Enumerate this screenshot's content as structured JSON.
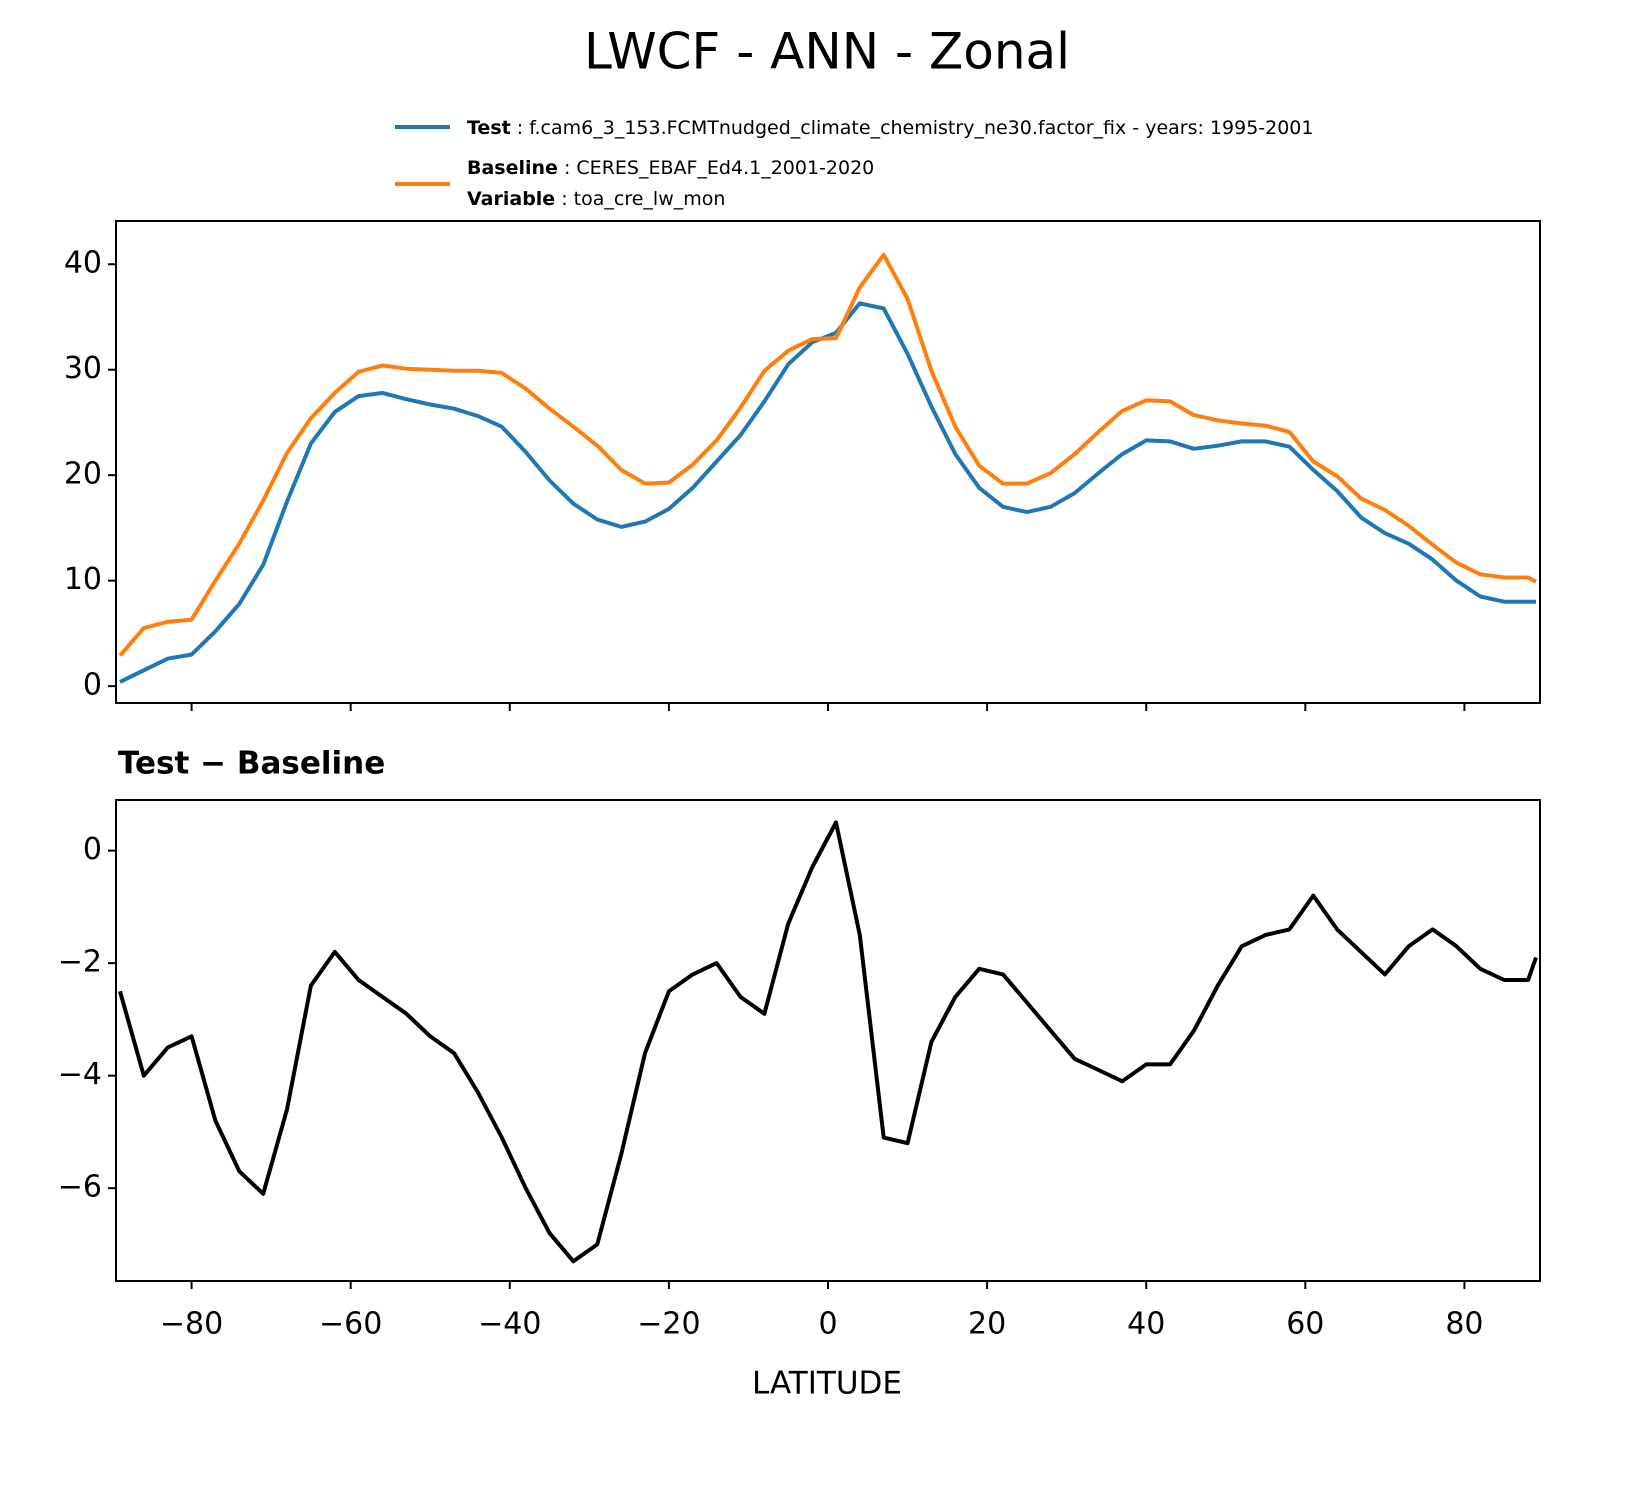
{
  "chart_data": [
    {
      "type": "line",
      "title": "LWCF - ANN - Zonal",
      "x": [
        -89,
        -86,
        -83,
        -80,
        -77,
        -74,
        -71,
        -68,
        -65,
        -62,
        -59,
        -56,
        -53,
        -50,
        -47,
        -44,
        -41,
        -38,
        -35,
        -32,
        -29,
        -26,
        -23,
        -20,
        -17,
        -14,
        -11,
        -8,
        -5,
        -2,
        1,
        4,
        7,
        10,
        13,
        16,
        19,
        22,
        25,
        28,
        31,
        34,
        37,
        40,
        43,
        46,
        49,
        52,
        55,
        58,
        61,
        64,
        67,
        70,
        73,
        76,
        79,
        82,
        85,
        88,
        89
      ],
      "series": [
        {
          "name": "Test",
          "label": " : f.cam6_3_153.FCMTnudged_climate_chemistry_ne30.factor_fix - years: 1995-2001",
          "color": "#1f77b4",
          "values": [
            0.4,
            1.5,
            2.6,
            3.0,
            5.2,
            7.8,
            11.5,
            17.5,
            23,
            26,
            27.5,
            27.8,
            27.2,
            26.7,
            26.3,
            25.6,
            24.6,
            22.2,
            19.5,
            17.3,
            15.8,
            15.1,
            15.6,
            16.8,
            18.8,
            21.3,
            23.8,
            27.0,
            30.5,
            32.6,
            33.5,
            36.3,
            35.8,
            31.5,
            26.5,
            22.0,
            18.8,
            17.0,
            16.5,
            17.0,
            18.3,
            20.2,
            22.0,
            23.3,
            23.2,
            22.5,
            22.8,
            23.2,
            23.2,
            22.7,
            20.5,
            18.5,
            16.0,
            14.5,
            13.5,
            12.0,
            10.0,
            8.5,
            8.0,
            8.0,
            8.0
          ]
        },
        {
          "name": "Baseline",
          "label": " : CERES_EBAF_Ed4.1_2001-2020",
          "color": "#ff7f0e",
          "values": [
            2.9,
            5.5,
            6.1,
            6.3,
            10.0,
            13.5,
            17.6,
            22.1,
            25.4,
            27.8,
            29.8,
            30.4,
            30.1,
            30.0,
            29.9,
            29.9,
            29.7,
            28.2,
            26.3,
            24.6,
            22.8,
            20.5,
            19.2,
            19.3,
            21.0,
            23.3,
            26.4,
            29.9,
            31.8,
            32.9,
            33.0,
            37.8,
            40.9,
            36.7,
            29.9,
            24.6,
            20.9,
            19.2,
            19.2,
            20.2,
            22.0,
            24.1,
            26.1,
            27.1,
            27.0,
            25.7,
            25.2,
            24.9,
            24.7,
            24.1,
            21.3,
            19.9,
            17.8,
            16.7,
            15.2,
            13.4,
            11.7,
            10.6,
            10.3,
            10.3,
            9.9
          ]
        }
      ],
      "variable": {
        "name": "Variable",
        "label": " : toa_cre_lw_mon"
      },
      "xlim": [
        -89.5,
        89.5
      ],
      "xticks": [
        -80,
        -60,
        -40,
        -20,
        0,
        20,
        40,
        60,
        80
      ],
      "ylim": [
        -1.6,
        44.1
      ],
      "yticks": [
        0,
        10,
        20,
        30,
        40
      ]
    },
    {
      "type": "line",
      "title": "Test − Baseline",
      "x_label": "LATITUDE",
      "x": [
        -89,
        -86,
        -83,
        -80,
        -77,
        -74,
        -71,
        -68,
        -65,
        -62,
        -59,
        -56,
        -53,
        -50,
        -47,
        -44,
        -41,
        -38,
        -35,
        -32,
        -29,
        -26,
        -23,
        -20,
        -17,
        -14,
        -11,
        -8,
        -5,
        -2,
        1,
        4,
        7,
        10,
        13,
        16,
        19,
        22,
        25,
        28,
        31,
        34,
        37,
        40,
        43,
        46,
        49,
        52,
        55,
        58,
        61,
        64,
        67,
        70,
        73,
        76,
        79,
        82,
        85,
        88,
        89
      ],
      "series": [
        {
          "color": "#000000",
          "values": [
            -2.5,
            -4.0,
            -3.5,
            -3.3,
            -4.8,
            -5.7,
            -6.1,
            -4.6,
            -2.4,
            -1.8,
            -2.3,
            -2.6,
            -2.9,
            -3.3,
            -3.6,
            -4.3,
            -5.1,
            -6.0,
            -6.8,
            -7.3,
            -7.0,
            -5.4,
            -3.6,
            -2.5,
            -2.2,
            -2.0,
            -2.6,
            -2.9,
            -1.3,
            -0.3,
            0.5,
            -1.5,
            -5.1,
            -5.2,
            -3.4,
            -2.6,
            -2.1,
            -2.2,
            -2.7,
            -3.2,
            -3.7,
            -3.9,
            -4.1,
            -3.8,
            -3.8,
            -3.2,
            -2.4,
            -1.7,
            -1.5,
            -1.4,
            -0.8,
            -1.4,
            -1.8,
            -2.2,
            -1.7,
            -1.4,
            -1.7,
            -2.1,
            -2.3,
            -2.3,
            -1.9
          ]
        }
      ],
      "xlim": [
        -89.5,
        89.5
      ],
      "xticks": [
        {
          "value": -80,
          "label": "−80"
        },
        {
          "value": -60,
          "label": "−60"
        },
        {
          "value": -40,
          "label": "−40"
        },
        {
          "value": -20,
          "label": "−20"
        },
        0,
        20,
        40,
        60,
        80
      ],
      "ylim": [
        -7.65,
        0.9
      ],
      "yticks": [
        {
          "value": -6,
          "label": "−6"
        },
        {
          "value": -4,
          "label": "−4"
        },
        {
          "value": -2,
          "label": "−2"
        },
        0
      ]
    }
  ]
}
